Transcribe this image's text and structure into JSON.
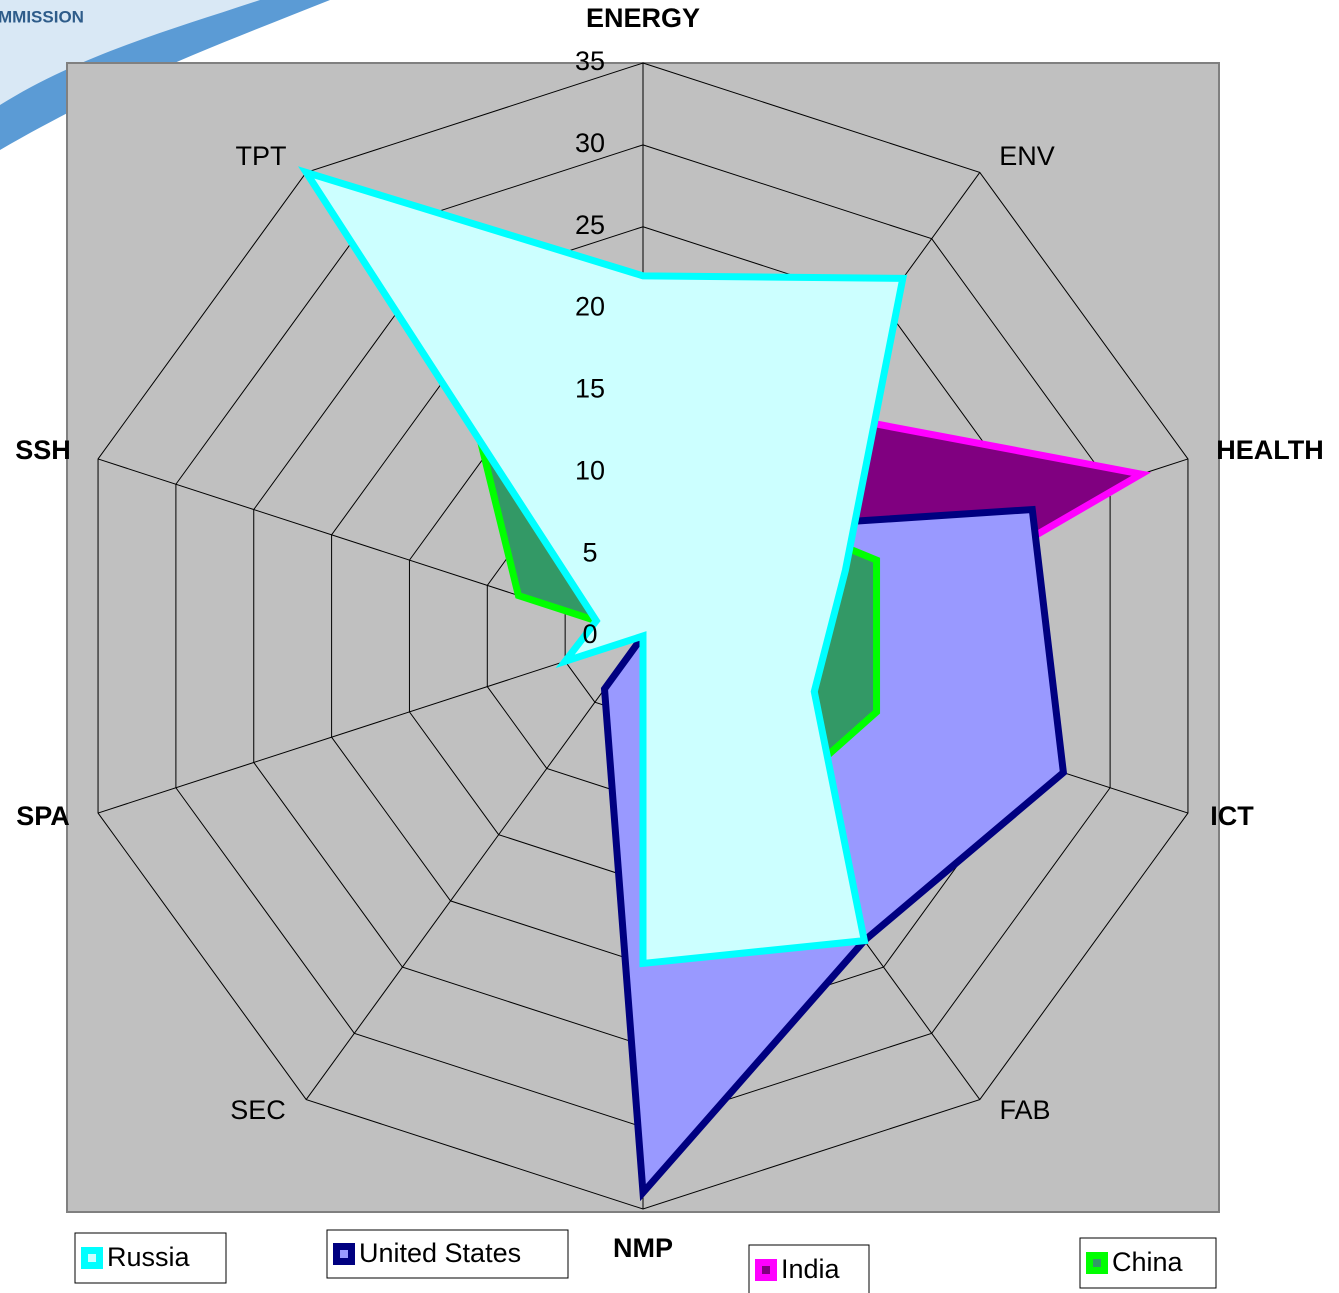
{
  "logo_text": "MMISSION",
  "chart_data": {
    "type": "radar",
    "categories": [
      "ENERGY",
      "ENV",
      "HEALTH",
      "ICT",
      "FAB",
      "NMP",
      "SEC",
      "SPA",
      "SSH",
      "TPT"
    ],
    "ylim": [
      0,
      35
    ],
    "yticks": [
      0,
      5,
      10,
      15,
      20,
      25,
      30,
      35
    ],
    "grid": true,
    "series": [
      {
        "name": "India",
        "color": "#ff00ff",
        "fill": "#800080",
        "values": [
          0,
          17,
          32,
          9,
          0,
          0,
          0,
          0,
          0,
          0
        ]
      },
      {
        "name": "United States",
        "color": "#000080",
        "fill": "#9999ff",
        "values": [
          0,
          8,
          25,
          27,
          23,
          34,
          4,
          0,
          0,
          0
        ]
      },
      {
        "name": "China",
        "color": "#00ff00",
        "fill": "#339966",
        "values": [
          0,
          10,
          15,
          15,
          13,
          0,
          0,
          0,
          8,
          18
        ]
      },
      {
        "name": "Russia",
        "color": "#00ffff",
        "fill": "#ccffff",
        "values": [
          22,
          27,
          13,
          11,
          23,
          20,
          0,
          5,
          3,
          35
        ]
      }
    ]
  }
}
